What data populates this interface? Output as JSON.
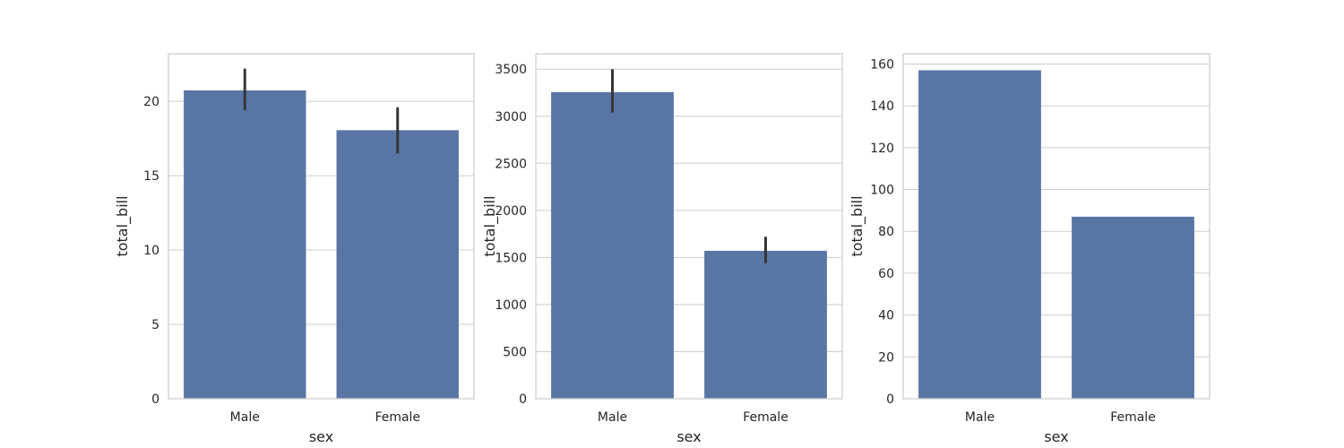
{
  "chart_data": [
    {
      "type": "bar",
      "categories": [
        "Male",
        "Female"
      ],
      "values": [
        20.74,
        18.06
      ],
      "error_bars": [
        [
          19.4,
          22.2
        ],
        [
          16.5,
          19.6
        ]
      ],
      "xlabel": "sex",
      "ylabel": "total_bill",
      "ylim": [
        0,
        23.2
      ],
      "yticks": [
        0,
        5,
        10,
        15,
        20
      ],
      "grid": true,
      "bar_color": "#5975a4",
      "error_color": "#363636"
    },
    {
      "type": "bar",
      "categories": [
        "Male",
        "Female"
      ],
      "values": [
        3256.82,
        1570.95
      ],
      "error_bars": [
        [
          3040,
          3500
        ],
        [
          1440,
          1720
        ]
      ],
      "xlabel": "sex",
      "ylabel": "total_bill",
      "ylim": [
        0,
        3664
      ],
      "yticks": [
        0,
        500,
        1000,
        1500,
        2000,
        2500,
        3000,
        3500
      ],
      "grid": true,
      "bar_color": "#5975a4",
      "error_color": "#363636"
    },
    {
      "type": "bar",
      "categories": [
        "Male",
        "Female"
      ],
      "values": [
        157,
        87
      ],
      "error_bars": null,
      "xlabel": "sex",
      "ylabel": "total_bill",
      "ylim": [
        0,
        164.9
      ],
      "yticks": [
        0,
        20,
        40,
        60,
        80,
        100,
        120,
        140,
        160
      ],
      "grid": true,
      "bar_color": "#5975a4",
      "error_color": "#363636"
    }
  ],
  "colors": {
    "grid": "#cccccc",
    "spine": "#cccccc",
    "text": "#262626"
  }
}
